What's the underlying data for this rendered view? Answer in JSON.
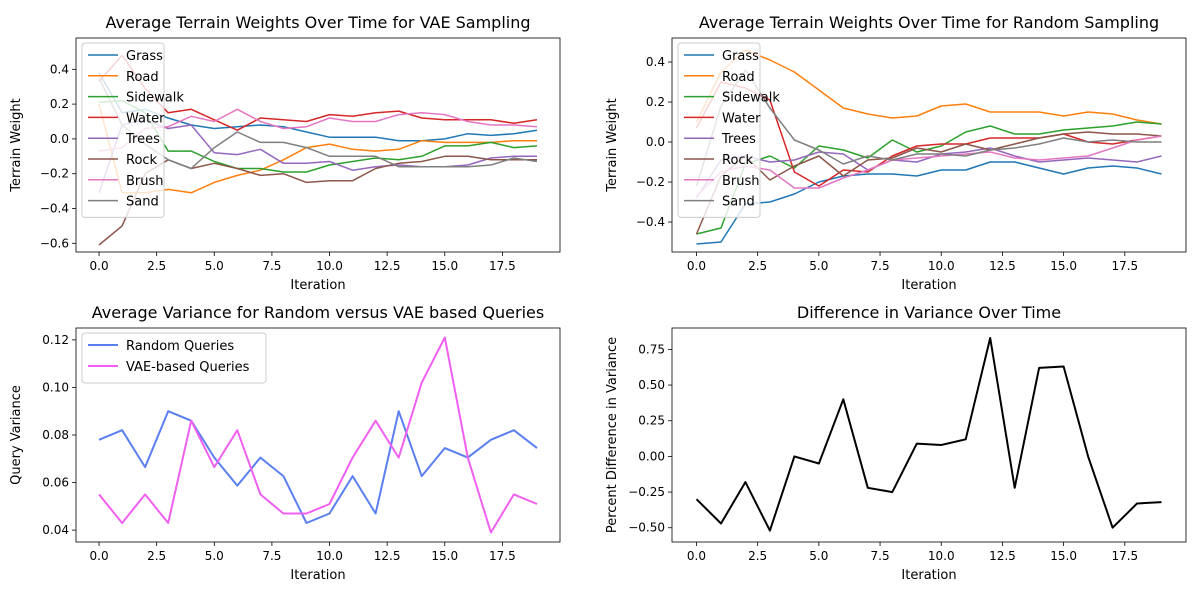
{
  "chart_data": [
    {
      "type": "line",
      "title": "Average Terrain Weights Over Time for VAE Sampling",
      "xlabel": "Iteration",
      "ylabel": "Terrain Weight",
      "xlim": [
        -1,
        20
      ],
      "ylim": [
        -0.65,
        0.58
      ],
      "xticks": [
        0,
        2.5,
        5,
        7.5,
        10,
        12.5,
        15,
        17.5
      ],
      "xtick_labels": [
        "0.0",
        "2.5",
        "5.0",
        "7.5",
        "10.0",
        "12.5",
        "15.0",
        "17.5"
      ],
      "yticks": [
        -0.6,
        -0.4,
        -0.2,
        0.0,
        0.2,
        0.4
      ],
      "ytick_labels": [
        "−0.6",
        "−0.4",
        "−0.2",
        "0.0",
        "0.2",
        "0.4"
      ],
      "legend_position": "upper-left",
      "x": [
        0,
        1,
        2,
        3,
        4,
        5,
        6,
        7,
        8,
        9,
        10,
        11,
        12,
        13,
        14,
        15,
        16,
        17,
        18,
        19
      ],
      "series": [
        {
          "name": "Grass",
          "color": "#1f77b4",
          "values": [
            0.38,
            0.15,
            0.17,
            0.12,
            0.08,
            0.06,
            0.07,
            0.08,
            0.07,
            0.04,
            0.01,
            0.01,
            0.01,
            -0.01,
            -0.01,
            0.0,
            0.03,
            0.02,
            0.03,
            0.05
          ]
        },
        {
          "name": "Road",
          "color": "#ff7f0e",
          "values": [
            0.2,
            -0.31,
            -0.31,
            -0.29,
            -0.31,
            -0.25,
            -0.21,
            -0.18,
            -0.12,
            -0.05,
            -0.03,
            -0.06,
            -0.07,
            -0.06,
            -0.01,
            -0.02,
            -0.02,
            -0.02,
            -0.01,
            -0.01
          ]
        },
        {
          "name": "Sidewalk",
          "color": "#2ca02c",
          "values": [
            0.21,
            0.22,
            0.15,
            -0.07,
            -0.07,
            -0.13,
            -0.17,
            -0.17,
            -0.19,
            -0.19,
            -0.15,
            -0.13,
            -0.11,
            -0.12,
            -0.1,
            -0.04,
            -0.04,
            -0.02,
            -0.05,
            -0.04
          ]
        },
        {
          "name": "Water",
          "color": "#d62728",
          "values": [
            0.33,
            0.48,
            0.29,
            0.15,
            0.17,
            0.11,
            0.05,
            0.12,
            0.11,
            0.1,
            0.14,
            0.13,
            0.15,
            0.16,
            0.12,
            0.11,
            0.11,
            0.11,
            0.09,
            0.11
          ]
        },
        {
          "name": "Trees",
          "color": "#9467bd",
          "values": [
            -0.31,
            0.08,
            0.11,
            0.06,
            0.08,
            -0.08,
            -0.09,
            -0.06,
            -0.14,
            -0.14,
            -0.13,
            -0.18,
            -0.16,
            -0.15,
            -0.16,
            -0.16,
            -0.15,
            -0.11,
            -0.1,
            -0.1
          ]
        },
        {
          "name": "Rock",
          "color": "#8c564b",
          "values": [
            -0.61,
            -0.5,
            -0.2,
            -0.12,
            -0.17,
            -0.14,
            -0.17,
            -0.21,
            -0.2,
            -0.25,
            -0.24,
            -0.24,
            -0.17,
            -0.14,
            -0.13,
            -0.1,
            -0.1,
            -0.12,
            -0.12,
            -0.12
          ]
        },
        {
          "name": "Brush",
          "color": "#e377c2",
          "values": [
            -0.07,
            -0.05,
            0.06,
            0.07,
            0.13,
            0.1,
            0.17,
            0.1,
            0.06,
            0.07,
            0.12,
            0.1,
            0.1,
            0.14,
            0.15,
            0.14,
            0.1,
            0.08,
            0.08,
            0.07
          ]
        },
        {
          "name": "Sand",
          "color": "#7f7f7f",
          "values": [
            0.35,
            0.08,
            -0.03,
            -0.12,
            -0.17,
            -0.05,
            0.04,
            -0.02,
            -0.02,
            -0.05,
            -0.1,
            -0.1,
            -0.1,
            -0.16,
            -0.16,
            -0.16,
            -0.16,
            -0.15,
            -0.11,
            -0.13
          ]
        }
      ]
    },
    {
      "type": "line",
      "title": "Average Terrain Weights Over Time for Random Sampling",
      "xlabel": "Iteration",
      "ylabel": "Terrain Weight",
      "xlim": [
        -1,
        20
      ],
      "ylim": [
        -0.55,
        0.52
      ],
      "xticks": [
        0,
        2.5,
        5,
        7.5,
        10,
        12.5,
        15,
        17.5
      ],
      "xtick_labels": [
        "0.0",
        "2.5",
        "5.0",
        "7.5",
        "10.0",
        "12.5",
        "15.0",
        "17.5"
      ],
      "yticks": [
        -0.4,
        -0.2,
        0.0,
        0.2,
        0.4
      ],
      "ytick_labels": [
        "−0.4",
        "−0.2",
        "0.0",
        "0.2",
        "0.4"
      ],
      "legend_position": "upper-left",
      "x": [
        0,
        1,
        2,
        3,
        4,
        5,
        6,
        7,
        8,
        9,
        10,
        11,
        12,
        13,
        14,
        15,
        16,
        17,
        18,
        19
      ],
      "series": [
        {
          "name": "Grass",
          "color": "#1f77b4",
          "values": [
            -0.51,
            -0.5,
            -0.31,
            -0.3,
            -0.26,
            -0.2,
            -0.17,
            -0.16,
            -0.16,
            -0.17,
            -0.14,
            -0.14,
            -0.1,
            -0.1,
            -0.13,
            -0.16,
            -0.13,
            -0.12,
            -0.13,
            -0.16
          ]
        },
        {
          "name": "Road",
          "color": "#ff7f0e",
          "values": [
            0.1,
            0.35,
            0.46,
            0.41,
            0.35,
            0.26,
            0.17,
            0.14,
            0.12,
            0.13,
            0.18,
            0.19,
            0.15,
            0.15,
            0.15,
            0.13,
            0.15,
            0.14,
            0.11,
            0.09
          ]
        },
        {
          "name": "Sidewalk",
          "color": "#2ca02c",
          "values": [
            -0.46,
            -0.43,
            -0.11,
            -0.07,
            -0.13,
            -0.02,
            -0.04,
            -0.08,
            0.01,
            -0.05,
            -0.02,
            0.05,
            0.08,
            0.04,
            0.04,
            0.06,
            0.07,
            0.08,
            0.1,
            0.09
          ]
        },
        {
          "name": "Water",
          "color": "#d62728",
          "values": [
            0.07,
            0.3,
            0.27,
            0.21,
            -0.15,
            -0.22,
            -0.14,
            -0.15,
            -0.07,
            -0.02,
            -0.01,
            -0.01,
            0.02,
            0.02,
            0.02,
            0.04,
            0.0,
            -0.01,
            0.01,
            0.03
          ]
        },
        {
          "name": "Trees",
          "color": "#9467bd",
          "values": [
            -0.28,
            -0.09,
            -0.07,
            -0.1,
            -0.09,
            -0.05,
            -0.06,
            -0.14,
            -0.09,
            -0.1,
            -0.06,
            -0.05,
            -0.03,
            -0.07,
            -0.1,
            -0.09,
            -0.08,
            -0.09,
            -0.1,
            -0.07
          ]
        },
        {
          "name": "Rock",
          "color": "#8c564b",
          "values": [
            -0.46,
            -0.17,
            -0.07,
            -0.19,
            -0.12,
            -0.07,
            -0.17,
            -0.09,
            -0.08,
            -0.03,
            -0.05,
            -0.01,
            -0.04,
            -0.01,
            0.02,
            0.04,
            0.05,
            0.04,
            0.04,
            0.03
          ]
        },
        {
          "name": "Brush",
          "color": "#e377c2",
          "values": [
            -0.27,
            -0.15,
            -0.12,
            -0.14,
            -0.23,
            -0.23,
            -0.18,
            -0.14,
            -0.09,
            -0.08,
            -0.07,
            -0.06,
            -0.05,
            -0.08,
            -0.09,
            -0.08,
            -0.07,
            -0.03,
            0.01,
            0.03
          ]
        },
        {
          "name": "Sand",
          "color": "#7f7f7f",
          "values": [
            -0.22,
            0.18,
            0.36,
            0.17,
            0.01,
            -0.04,
            -0.11,
            -0.07,
            -0.09,
            -0.06,
            -0.06,
            -0.07,
            -0.04,
            -0.03,
            -0.01,
            0.02,
            0.0,
            0.01,
            0.0,
            0.0
          ]
        }
      ]
    },
    {
      "type": "line",
      "title": "Average Variance for Random versus VAE based Queries",
      "xlabel": "Iteration",
      "ylabel": "Query Variance",
      "xlim": [
        -1,
        20
      ],
      "ylim": [
        0.035,
        0.125
      ],
      "xticks": [
        0,
        2.5,
        5,
        7.5,
        10,
        12.5,
        15,
        17.5
      ],
      "xtick_labels": [
        "0.0",
        "2.5",
        "5.0",
        "7.5",
        "10.0",
        "12.5",
        "15.0",
        "17.5"
      ],
      "yticks": [
        0.04,
        0.06,
        0.08,
        0.1,
        0.12
      ],
      "ytick_labels": [
        "0.04",
        "0.06",
        "0.08",
        "0.10",
        "0.12"
      ],
      "legend_position": "upper-left",
      "x": [
        0,
        1,
        2,
        3,
        4,
        5,
        6,
        7,
        8,
        9,
        10,
        11,
        12,
        13,
        14,
        15,
        16,
        17,
        18,
        19
      ],
      "series": [
        {
          "name": "Random Queries",
          "color": "#5b7ff0",
          "values": [
            0.078,
            0.082,
            0.0665,
            0.09,
            0.086,
            0.0705,
            0.0587,
            0.0705,
            0.0627,
            0.043,
            0.047,
            0.0627,
            0.047,
            0.09,
            0.0627,
            0.0745,
            0.0705,
            0.078,
            0.082,
            0.0745
          ]
        },
        {
          "name": "VAE-based Queries",
          "color": "#f060f0",
          "values": [
            0.055,
            0.043,
            0.055,
            0.043,
            0.086,
            0.0665,
            0.082,
            0.055,
            0.047,
            0.047,
            0.051,
            0.0705,
            0.086,
            0.0705,
            0.102,
            0.121,
            0.0705,
            0.039,
            0.055,
            0.051
          ]
        }
      ]
    },
    {
      "type": "line",
      "title": "Difference in Variance Over Time",
      "xlabel": "Iteration",
      "ylabel": "Percent Difference in Variance",
      "xlim": [
        -1,
        20
      ],
      "ylim": [
        -0.6,
        0.9
      ],
      "xticks": [
        0,
        2.5,
        5,
        7.5,
        10,
        12.5,
        15,
        17.5
      ],
      "xtick_labels": [
        "0.0",
        "2.5",
        "5.0",
        "7.5",
        "10.0",
        "12.5",
        "15.0",
        "17.5"
      ],
      "yticks": [
        -0.5,
        -0.25,
        0.0,
        0.25,
        0.5,
        0.75
      ],
      "ytick_labels": [
        "−0.50",
        "−0.25",
        "0.00",
        "0.25",
        "0.50",
        "0.75"
      ],
      "legend_position": "none",
      "x": [
        0,
        1,
        2,
        3,
        4,
        5,
        6,
        7,
        8,
        9,
        10,
        11,
        12,
        13,
        14,
        15,
        16,
        17,
        18,
        19
      ],
      "series": [
        {
          "color": "#000000",
          "values": [
            -0.3,
            -0.47,
            -0.18,
            -0.52,
            0.0,
            -0.05,
            0.4,
            -0.22,
            -0.25,
            0.09,
            0.08,
            0.12,
            0.83,
            -0.22,
            0.62,
            0.63,
            0.0,
            -0.5,
            -0.33,
            -0.32
          ]
        }
      ]
    }
  ]
}
